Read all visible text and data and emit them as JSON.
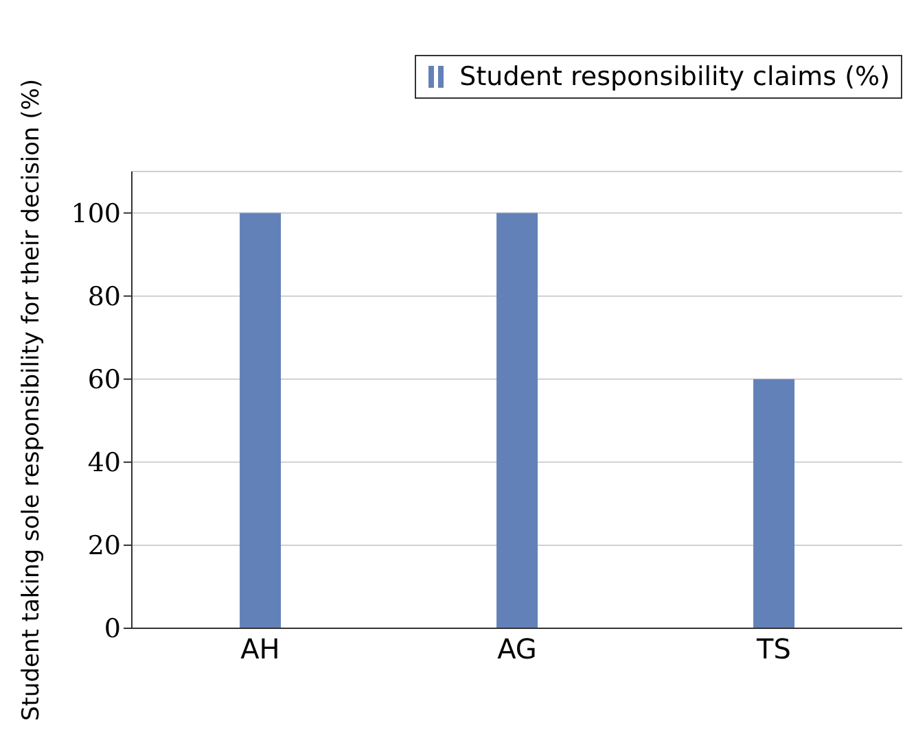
{
  "chart_data": {
    "type": "bar",
    "ylabel": "Student taking sole responsibility for their decision (%)",
    "categories": [
      "AH",
      "AG",
      "TS"
    ],
    "series": [
      {
        "name": "Student responsibility claims (%)",
        "color": "#6381b9",
        "values": [
          100,
          100,
          60
        ]
      }
    ],
    "ylim": [
      0,
      110
    ],
    "yticks": [
      0,
      20,
      40,
      60,
      80,
      100
    ],
    "grid": "y",
    "legend": "top right"
  }
}
